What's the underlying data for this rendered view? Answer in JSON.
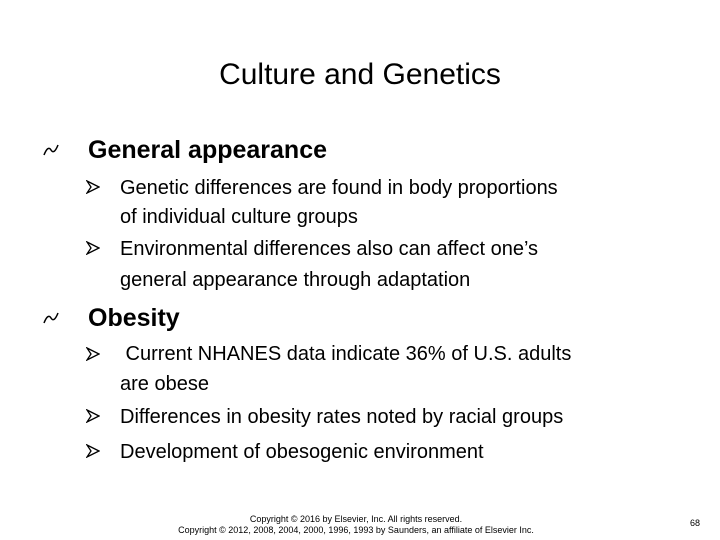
{
  "title": "Culture and Genetics",
  "sections": [
    {
      "heading": "General appearance",
      "items": [
        {
          "lines": [
            "Genetic differences are found in body proportions",
            "of individual culture groups"
          ]
        },
        {
          "lines": [
            "Environmental differences also can affect one’s",
            "general appearance through adaptation"
          ]
        }
      ]
    },
    {
      "heading": "Obesity",
      "items": [
        {
          "lines": [
            " Current NHANES data indicate 36% of U.S. adults",
            "are obese"
          ]
        },
        {
          "lines": [
            "Differences in obesity rates noted by racial groups"
          ]
        },
        {
          "lines": [
            "Development of obesogenic environment"
          ]
        }
      ]
    }
  ],
  "footer": {
    "lines": [
      "Copyright © 2016 by Elsevier, Inc. All rights reserved.",
      "Copyright © 2012, 2008, 2004, 2000, 1996, 1993 by Saunders, an affiliate of Elsevier Inc."
    ],
    "page_number": "68"
  }
}
